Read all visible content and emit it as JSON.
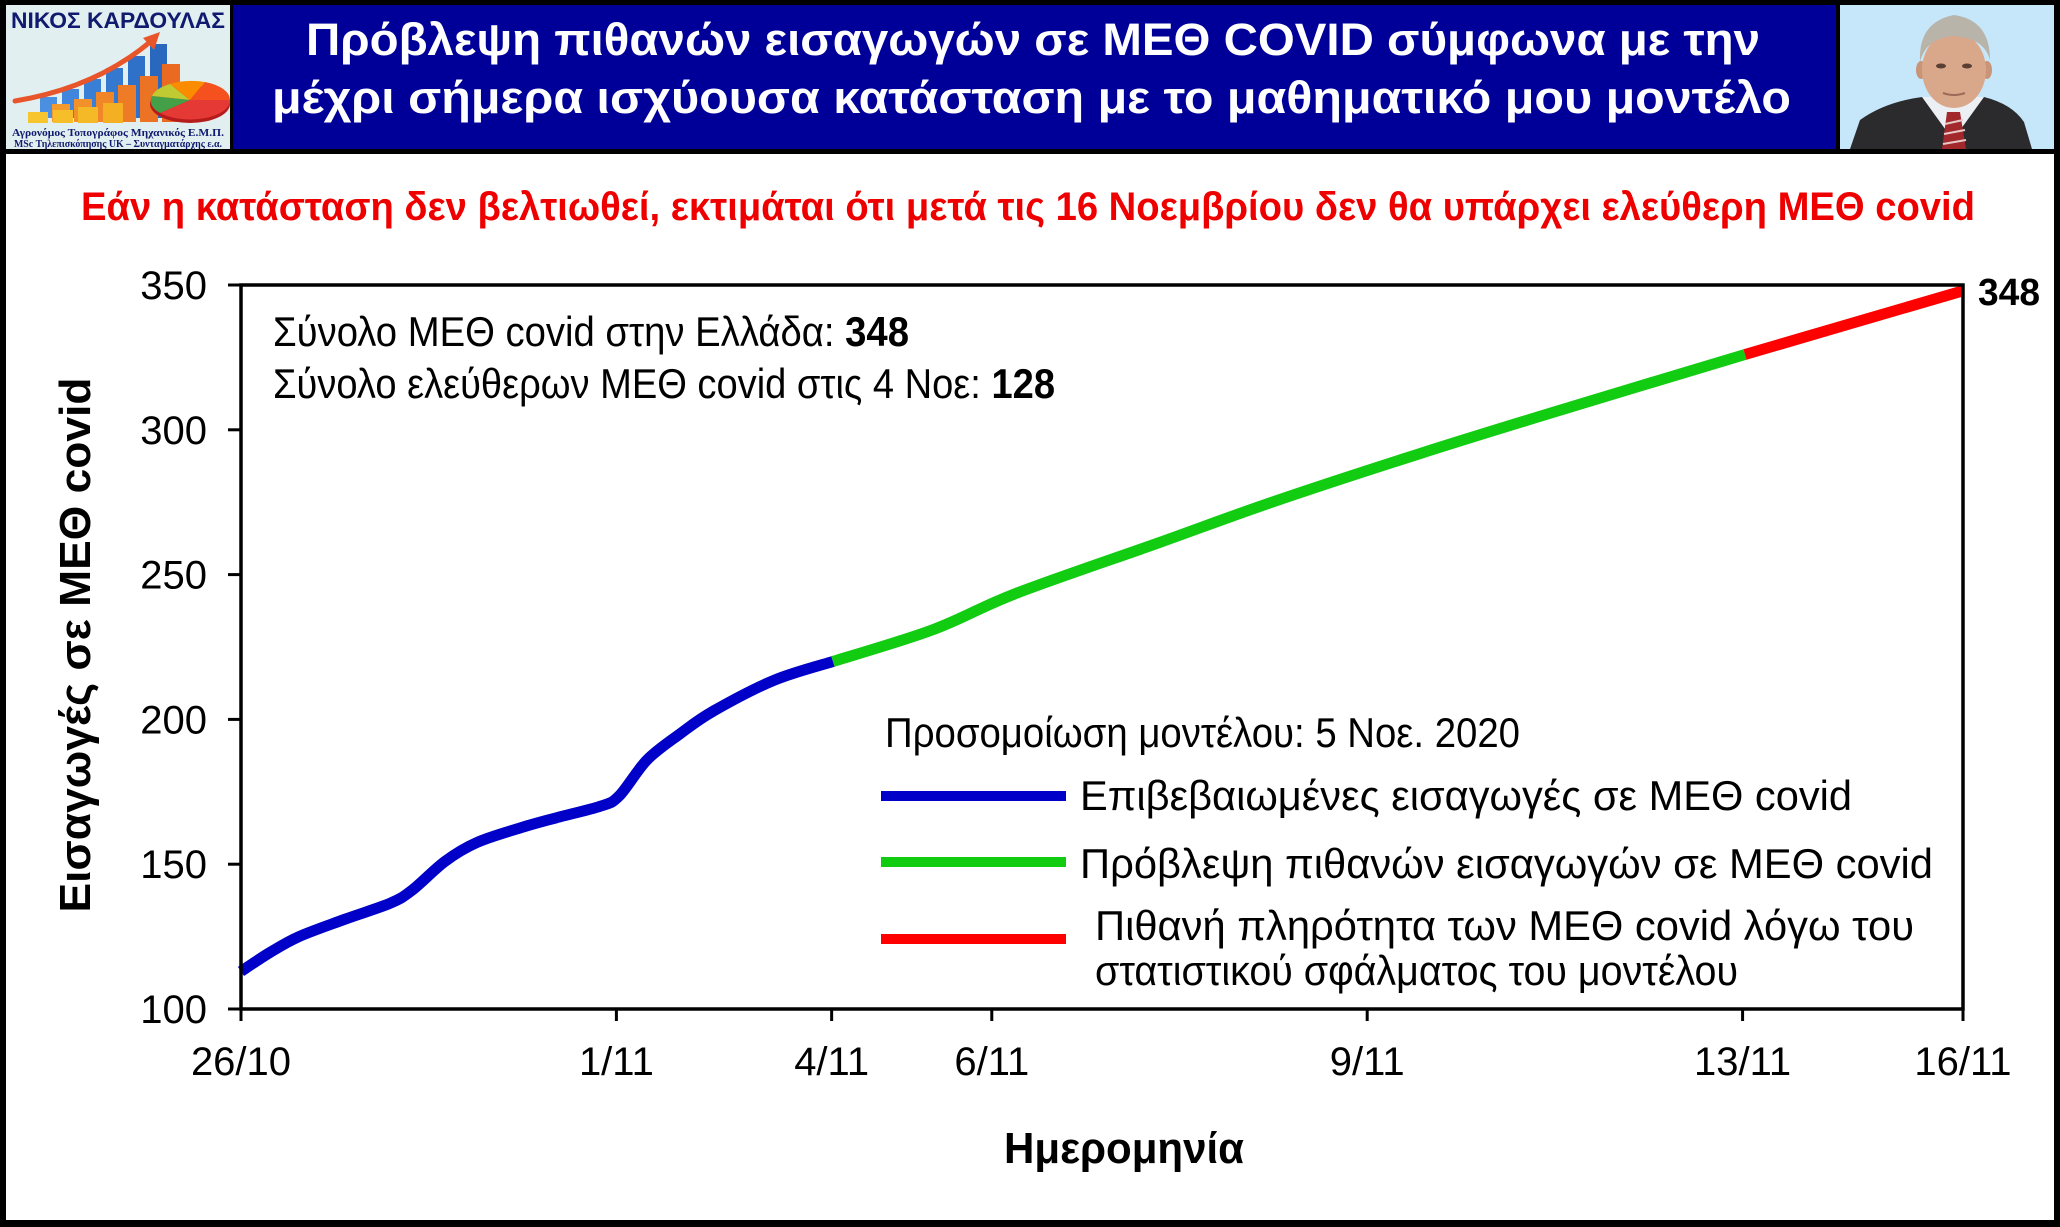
{
  "header": {
    "logo": {
      "name": "ΝΙΚΟΣ ΚΑΡΔΟΥΛΑΣ",
      "subtitle_lines": [
        "Αγρονόμος Τοπογράφος Μηχανικός Ε.Μ.Π.",
        "MSc Τηλεπισκόπησης UK – Συνταγματάρχης ε.α."
      ]
    },
    "title_lines": [
      "Πρόβλεψη πιθανών εισαγωγών σε ΜΕΘ COVID σύμφωνα με την",
      "μέχρι σήμερα ισχύουσα κατάσταση με το μαθηματικό μου μοντέλο"
    ]
  },
  "colors": {
    "header_bg": "#000099",
    "header_text": "#ffffff",
    "subtitle_text": "#ee0000",
    "frame": "#000000"
  },
  "chart_data": {
    "type": "line",
    "title": "Εάν η κατάσταση δεν βελτιωθεί, εκτιμάται ότι μετά τις 16 Νοεμβρίου δεν θα υπάρχει ελεύθερη ΜΕΘ covid",
    "xlabel": "Ημερομηνία",
    "ylabel": "Εισαγωγές σε ΜΕΘ covid",
    "ylim": [
      100,
      350
    ],
    "yticks": [
      350,
      300,
      250,
      200,
      150,
      100
    ],
    "xlim": [
      0,
      100
    ],
    "x_ticks": [
      {
        "label": "26/10",
        "pos": 0
      },
      {
        "label": "1/11",
        "pos": 21.8
      },
      {
        "label": "4/11",
        "pos": 34.3
      },
      {
        "label": "6/11",
        "pos": 43.6
      },
      {
        "label": "9/11",
        "pos": 65.4
      },
      {
        "label": "13/11",
        "pos": 87.2
      },
      {
        "label": "16/11",
        "pos": 100
      }
    ],
    "grid": false,
    "legend_position": "lower-right inside plot",
    "series": [
      {
        "name": "Επιβεβαιωμένες εισαγωγές σε ΜΕΘ covid",
        "color": "#0000c8",
        "x": [
          0,
          1.68,
          3.37,
          6.04,
          8.65,
          9.93,
          11.85,
          13.7,
          16.2,
          18.29,
          20.85,
          21.95,
          23.58,
          25.49,
          27.47,
          30.95,
          34.38
        ],
        "values": [
          113,
          119.5,
          125,
          131,
          136.5,
          141,
          151,
          157.5,
          162.5,
          166,
          170,
          173.5,
          186,
          195,
          203,
          213.5,
          220
        ]
      },
      {
        "name": "Πρόβλεψη πιθανών εισαγωγών σε ΜΕΘ covid",
        "color": "#11cc11",
        "x": [
          34.38,
          40.19,
          45.01,
          53.31,
          59.87,
          68.58,
          77.29,
          87.34
        ],
        "values": [
          220,
          231,
          243.5,
          261,
          275,
          292,
          308,
          326
        ]
      },
      {
        "name": "Πιθανή πληρότητα των ΜΕΘ covid λόγω του στατιστικού σφάλματος του μοντέλου",
        "color": "#ff0000",
        "x": [
          87.34,
          100
        ],
        "values": [
          326,
          348
        ]
      }
    ],
    "annotations": {
      "info_lines": [
        {
          "text": "Σύνολο ΜΕΘ covid στην Ελλάδα: ",
          "value": "348"
        },
        {
          "text": "Σύνολο ελεύθερων ΜΕΘ covid στις 4 Νοε: ",
          "value": "128"
        }
      ],
      "end_value_label": "348"
    },
    "legend": {
      "title": "Προσομοίωση μοντέλου: 5 Νοε. 2020",
      "items": [
        {
          "lines": [
            "Επιβεβαιωμένες εισαγωγές σε ΜΕΘ covid"
          ]
        },
        {
          "lines": [
            "Πρόβλεψη πιθανών εισαγωγών σε ΜΕΘ covid"
          ]
        },
        {
          "lines": [
            "Πιθανή πληρότητα των ΜΕΘ covid λόγω του",
            "στατιστικού σφάλματος του μοντέλου"
          ]
        }
      ]
    }
  }
}
